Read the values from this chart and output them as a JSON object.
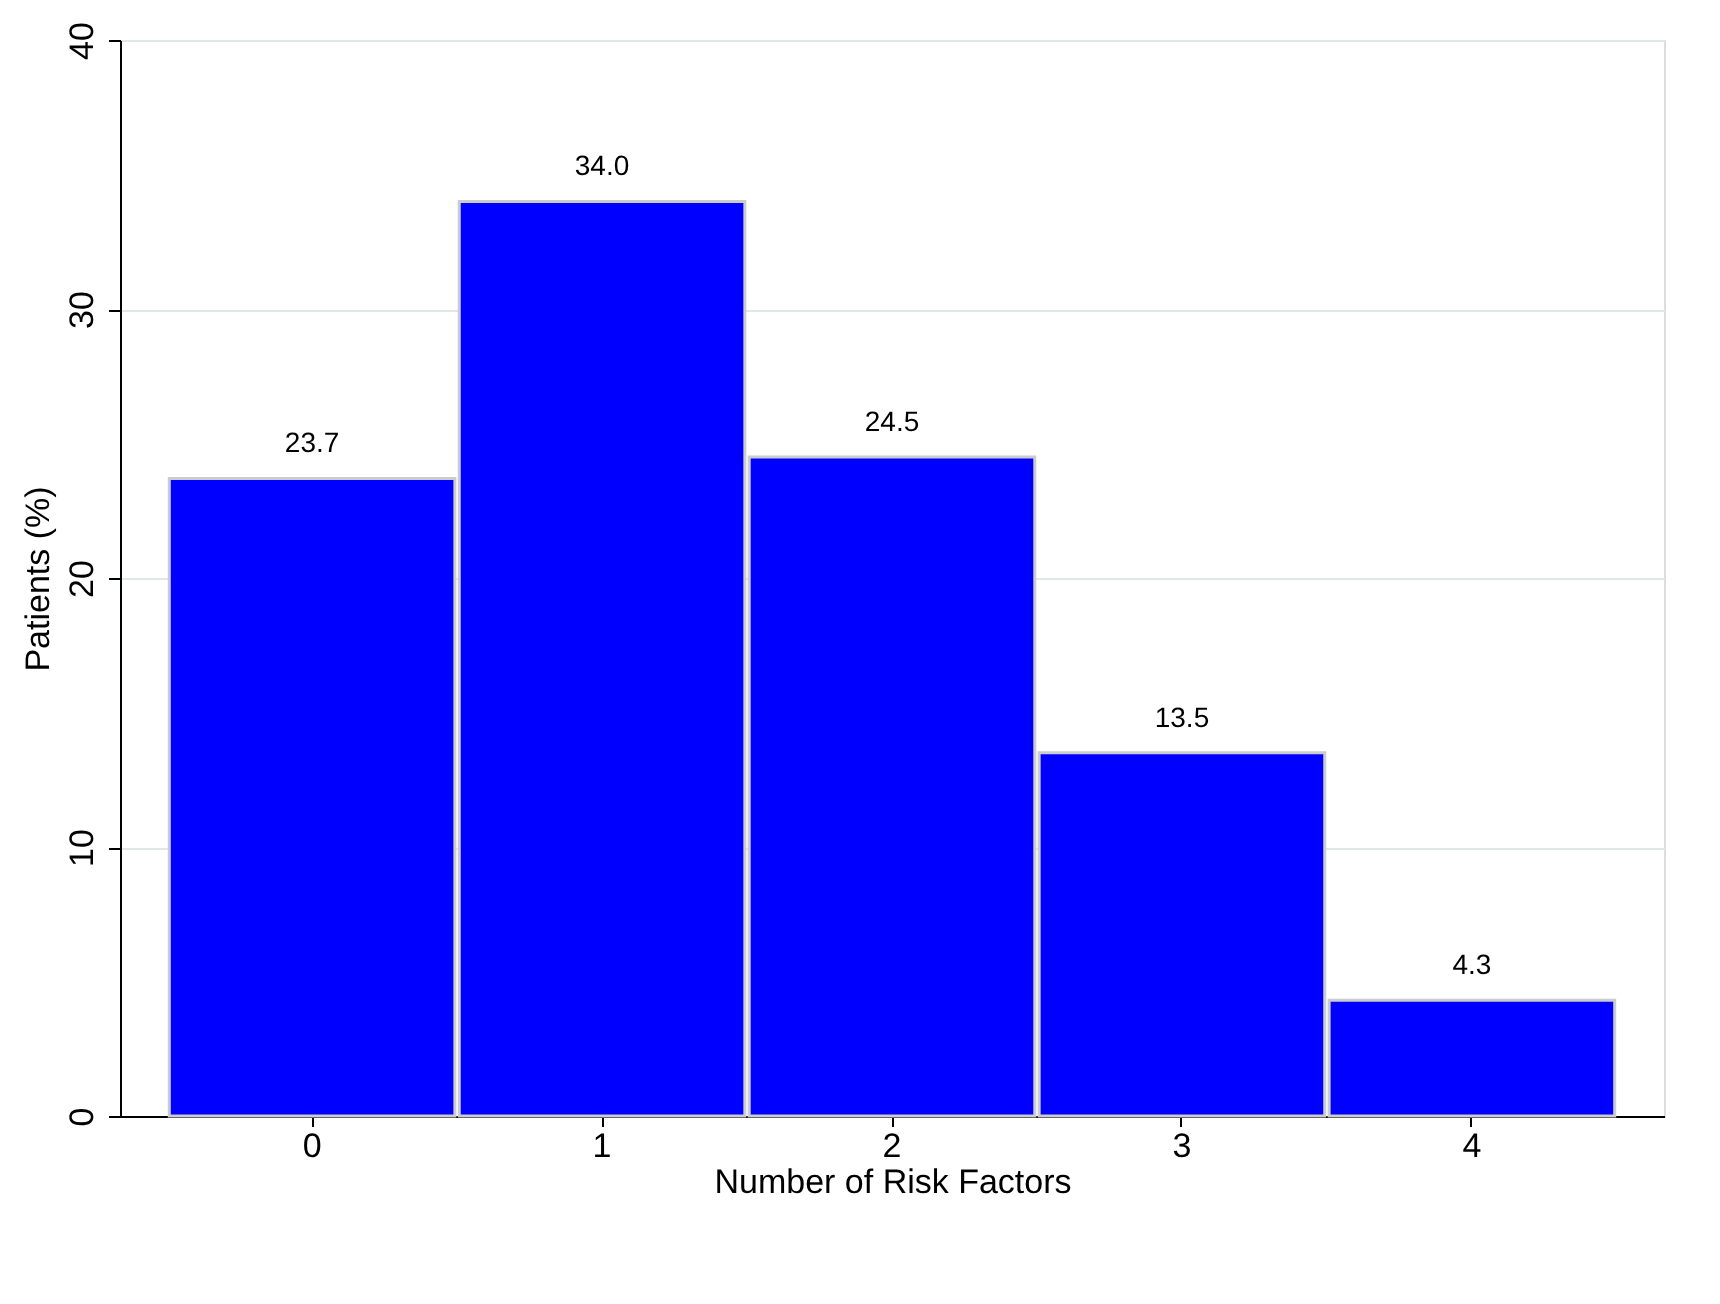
{
  "chart_data": {
    "type": "bar",
    "xlabel": "Number of Risk Factors",
    "ylabel": "Patients (%)",
    "categories": [
      "0",
      "1",
      "2",
      "3",
      "4"
    ],
    "values": [
      23.7,
      34.0,
      24.5,
      13.5,
      4.3
    ],
    "value_labels": [
      "23.7",
      "34.0",
      "24.5",
      "13.5",
      "4.3"
    ],
    "color": "#0000ff",
    "ylim": [
      0,
      40
    ],
    "yticks": [
      0,
      10,
      20,
      30,
      40
    ],
    "grid": "y"
  }
}
